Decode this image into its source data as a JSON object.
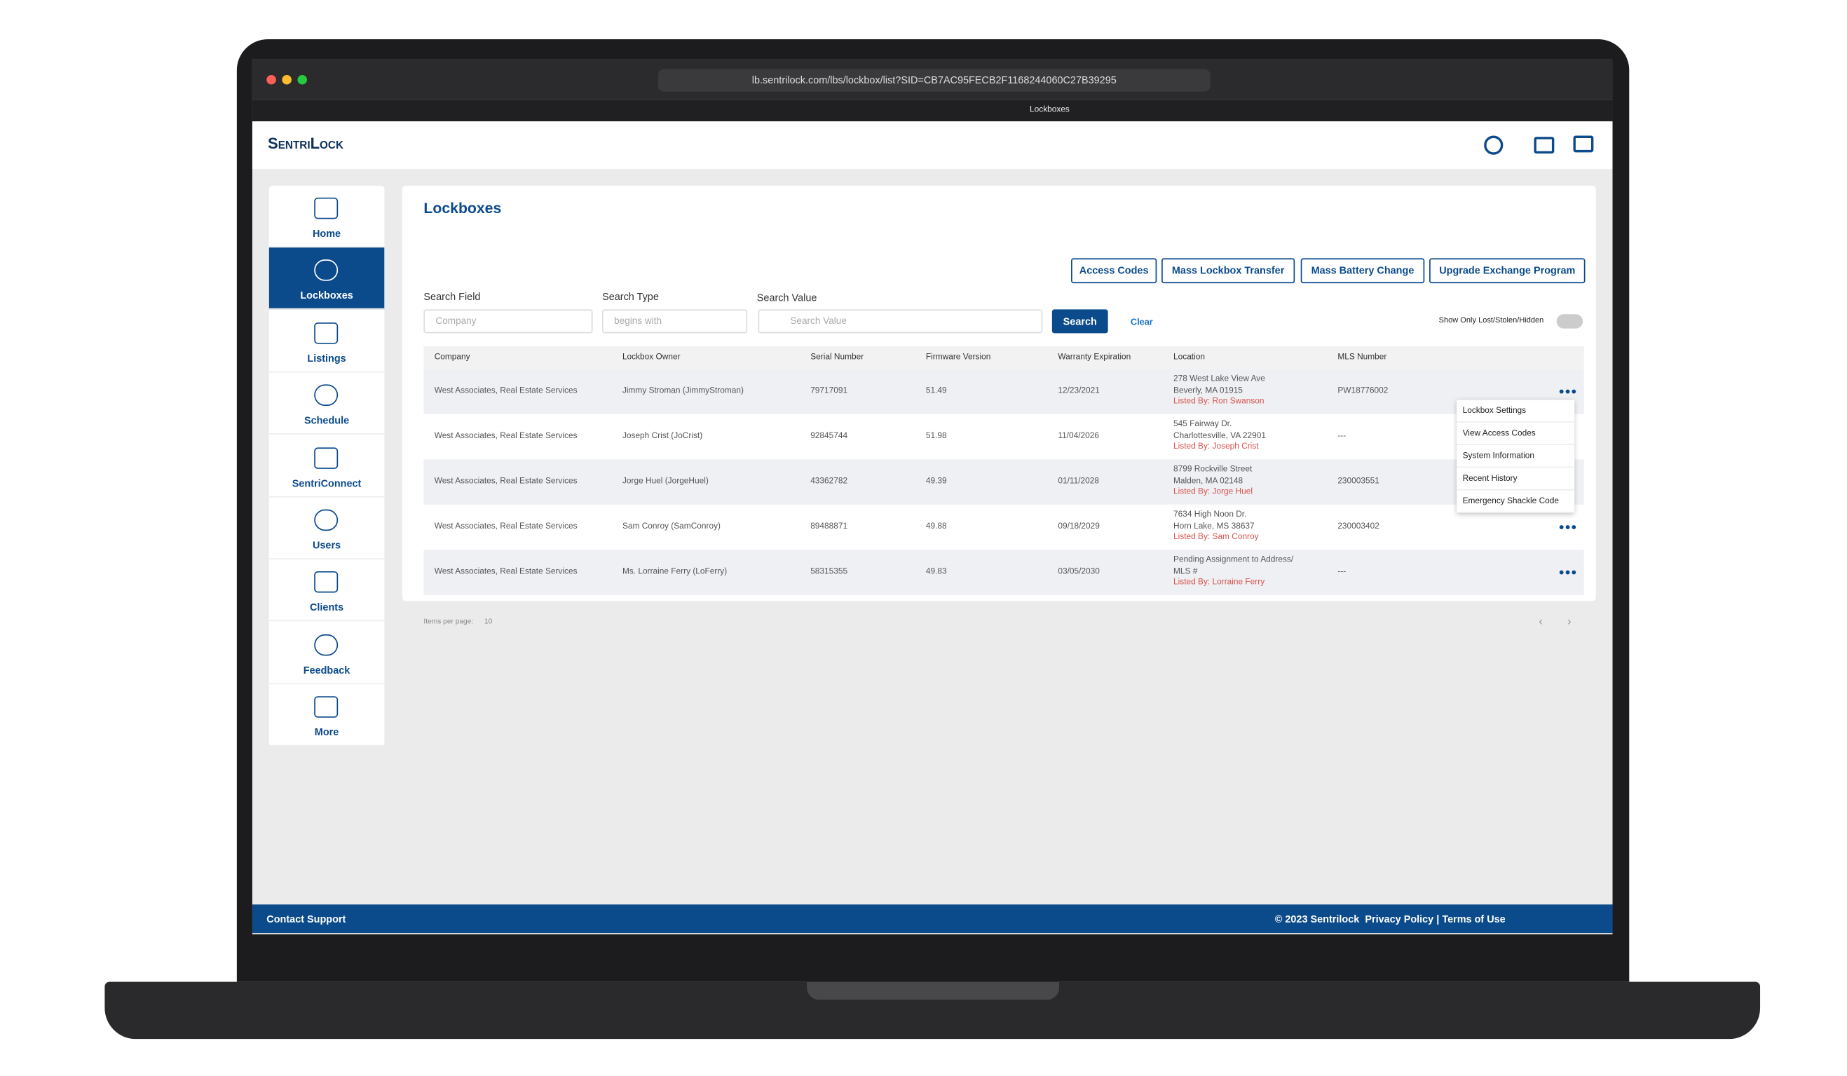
{
  "browser": {
    "url": "lb.sentrilock.com/lbs/lockbox/list?SID=CB7AC95FECB2F1168244060C27B39295",
    "tab_title": "Lockboxes"
  },
  "header": {
    "logo": "SentriLock"
  },
  "nav": [
    "Home",
    "Lockboxes",
    "Listings",
    "Schedule",
    "SentriConnect",
    "Users",
    "Clients",
    "Feedback",
    "More"
  ],
  "page": {
    "title": "Lockboxes",
    "buttons": [
      "Access Codes",
      "Mass Lockbox Transfer",
      "Mass Battery Change",
      "Upgrade Exchange Program"
    ],
    "search": {
      "field_label": "Search Field",
      "field_value": "Company",
      "type_label": "Search Type",
      "type_value": "begins with",
      "value_label": "Search Value",
      "value_placeholder": "Search Value",
      "search_button": "Search",
      "clear": "Clear",
      "toggle_label": "Show Only Lost/Stolen/Hidden"
    }
  },
  "table": {
    "headers": [
      "Company",
      "Lockbox Owner",
      "Serial Number",
      "Firmware Version",
      "Warranty Expiration",
      "Location",
      "MLS Number"
    ],
    "rows": [
      [
        "West Associates, Real Estate Services",
        "Jimmy Stroman (JimmyStroman)",
        "79717091",
        "51.49",
        "12/23/2021",
        [
          "278 West Lake View Ave",
          "Beverly, MA 01915",
          "Listed By: Ron Swanson"
        ],
        "PW18776002"
      ],
      [
        "West Associates, Real Estate Services",
        "Joseph Crist (JoCrist)",
        "92845744",
        "51.98",
        "11/04/2026",
        [
          "545 Fairway Dr.",
          "Charlottesville, VA 22901",
          "Listed By: Joseph Crist"
        ],
        "---"
      ],
      [
        "West Associates, Real Estate Services",
        "Jorge Huel (JorgeHuel)",
        "43362782",
        "49.39",
        "01/11/2028",
        [
          "8799 Rockville Street",
          "Malden, MA 02148",
          "Listed By: Jorge Huel"
        ],
        "230003551"
      ],
      [
        "West Associates, Real Estate Services",
        "Sam Conroy (SamConroy)",
        "89488871",
        "49.88",
        "09/18/2029",
        [
          "7634 High Noon Dr.",
          "Horn Lake, MS 38637",
          "Listed By: Sam Conroy"
        ],
        "230003402"
      ],
      [
        "West Associates, Real Estate Services",
        "Ms. Lorraine Ferry (LoFerry)",
        "58315355",
        "49.83",
        "03/05/2030",
        [
          "Pending Assignment to Address/",
          "MLS #",
          "Listed By: Lorraine Ferry"
        ],
        "---"
      ]
    ],
    "menu": [
      "Lockbox Settings",
      "View Access Codes",
      "System Information",
      "Recent History",
      "Emergency Shackle Code"
    ],
    "items_per_page_label": "Items per page:",
    "items_per_page": "10"
  },
  "footer": {
    "left": "Contact Support",
    "copyright": "© 2023 Sentrilock",
    "privacy": "Privacy Policy",
    "separator": "|",
    "terms": "Terms of Use"
  }
}
